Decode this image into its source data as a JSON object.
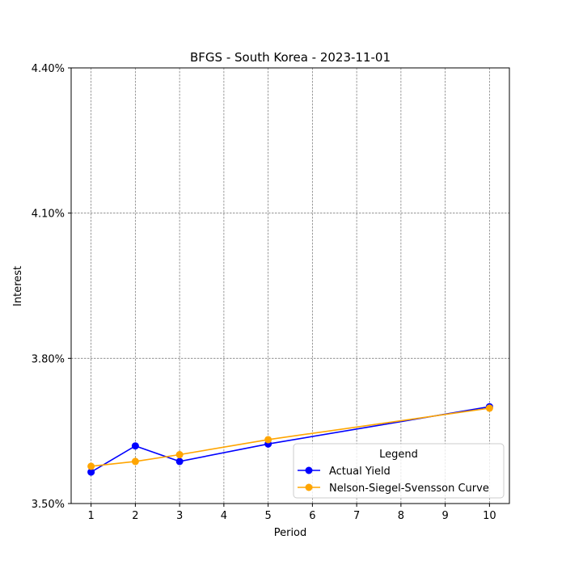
{
  "chart_data": {
    "type": "line",
    "title": "BFGS - South Korea - 2023-11-01",
    "xlabel": "Period",
    "ylabel": "Interest",
    "x_ticks": [
      "1",
      "2",
      "3",
      "4",
      "5",
      "6",
      "7",
      "8",
      "9",
      "10"
    ],
    "y_ticks": [
      "3.50%",
      "3.80%",
      "4.10%",
      "4.40%"
    ],
    "xlim": [
      0.55,
      10.45
    ],
    "ylim": [
      3.5,
      4.4
    ],
    "grid": true,
    "legend": {
      "title": "Legend",
      "placement": "lower-right"
    },
    "series": [
      {
        "name": "Actual Yield",
        "color": "#0000ff",
        "marker": "circle",
        "x": [
          1,
          2,
          3,
          5,
          10
        ],
        "y": [
          3.565,
          3.619,
          3.587,
          3.623,
          3.7
        ]
      },
      {
        "name": "Nelson-Siegel-Svensson Curve",
        "color": "#ffa500",
        "marker": "circle",
        "x": [
          1,
          2,
          3,
          5,
          10
        ],
        "y": [
          3.577,
          3.587,
          3.601,
          3.632,
          3.697
        ]
      }
    ]
  }
}
